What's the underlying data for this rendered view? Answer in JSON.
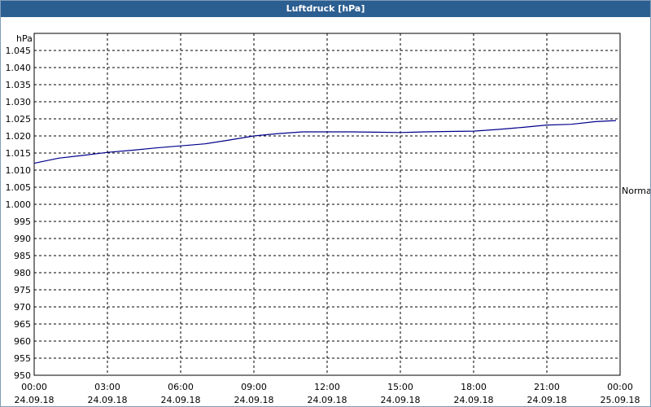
{
  "window": {
    "title": "Luftdruck [hPa]"
  },
  "chart_data": {
    "type": "line",
    "title": "Luftdruck [hPa]",
    "ylabel": "hPa",
    "xlabel": "",
    "ylim": [
      950,
      1050
    ],
    "ytick_labels": [
      "1.045",
      "1.040",
      "1.035",
      "1.030",
      "1.025",
      "1.020",
      "1.015",
      "1.010",
      "1.005",
      "1.000",
      "995",
      "990",
      "985",
      "980",
      "975",
      "970",
      "965",
      "960",
      "955",
      "950"
    ],
    "ytick_values": [
      1045,
      1040,
      1035,
      1030,
      1025,
      1020,
      1015,
      1010,
      1005,
      1000,
      995,
      990,
      985,
      980,
      975,
      970,
      965,
      960,
      955,
      950
    ],
    "xtick_times": [
      "00:00",
      "03:00",
      "06:00",
      "09:00",
      "12:00",
      "15:00",
      "18:00",
      "21:00",
      "00:00"
    ],
    "xtick_dates": [
      "24.09.18",
      "24.09.18",
      "24.09.18",
      "24.09.18",
      "24.09.18",
      "24.09.18",
      "24.09.18",
      "24.09.18",
      "25.09.18"
    ],
    "xtick_values": [
      "24.09.18 00:00",
      "24.09.18 03:00",
      "24.09.18 06:00",
      "24.09.18 09:00",
      "24.09.18 12:00",
      "24.09.18 15:00",
      "24.09.18 18:00",
      "24.09.18 21:00",
      "25.09.18 00:00"
    ],
    "reference_line": {
      "label": "Normal",
      "value": 1003.5
    },
    "grid": true,
    "series": [
      {
        "color": "#00008b",
        "x": [
          "24.09.18 00:00",
          "24.09.18 01:00",
          "24.09.18 02:00",
          "24.09.18 03:00",
          "24.09.18 04:00",
          "24.09.18 05:00",
          "24.09.18 06:00",
          "24.09.18 07:00",
          "24.09.18 08:00",
          "24.09.18 09:00",
          "24.09.18 10:00",
          "24.09.18 11:00",
          "24.09.18 12:00",
          "24.09.18 13:00",
          "24.09.18 14:00",
          "24.09.18 15:00",
          "24.09.18 16:00",
          "24.09.18 17:00",
          "24.09.18 18:00",
          "24.09.18 19:00",
          "24.09.18 20:00",
          "24.09.18 21:00",
          "24.09.18 22:00",
          "24.09.18 23:00",
          "24.09.18 23:50"
        ],
        "values": [
          1012.0,
          1013.5,
          1014.3,
          1015.2,
          1015.8,
          1016.5,
          1017.1,
          1017.7,
          1018.8,
          1020.0,
          1020.7,
          1021.2,
          1021.2,
          1021.2,
          1021.1,
          1021.0,
          1021.2,
          1021.3,
          1021.4,
          1021.9,
          1022.5,
          1023.2,
          1023.4,
          1024.2,
          1024.5
        ]
      }
    ]
  }
}
